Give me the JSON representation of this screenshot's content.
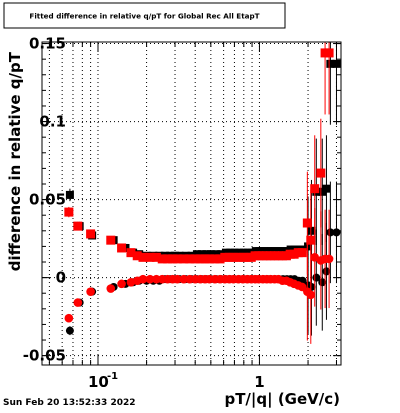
{
  "title": "Fitted difference in relative q/pT for Global Rec All EtapT",
  "date_stamp": "Sun Feb 20 13:52:33 2022",
  "chart_data": {
    "type": "scatter",
    "title": "Fitted difference in relative q/pT for Global Rec All EtapT",
    "xlabel": "pT/|q| (GeV/c)",
    "ylabel": "difference in relative q/pT",
    "xscale": "log",
    "xlim": [
      0.045,
      3.2
    ],
    "ylim": [
      -0.056,
      0.151
    ],
    "grid": true,
    "yticks": [
      {
        "label": "-0.05",
        "value": -0.05
      },
      {
        "label": "0",
        "value": 0
      },
      {
        "label": "0.05",
        "value": 0.05
      },
      {
        "label": "0.1",
        "value": 0.1
      },
      {
        "label": "0.15",
        "value": 0.15
      }
    ],
    "xticks": [
      {
        "base": "10",
        "exp": "-1",
        "value": 0.1
      },
      {
        "base": "1",
        "exp": "",
        "value": 1
      }
    ],
    "series": [
      {
        "color": "#000000",
        "x": [
          0.067,
          0.077,
          0.092,
          0.125,
          0.148,
          0.165,
          0.18,
          0.2,
          0.22,
          0.24,
          0.26,
          0.28,
          0.3,
          0.32,
          0.35,
          0.38,
          0.41,
          0.44,
          0.47,
          0.5,
          0.54,
          0.58,
          0.62,
          0.66,
          0.7,
          0.75,
          0.8,
          0.85,
          0.9,
          0.95,
          1.0,
          1.06,
          1.12,
          1.18,
          1.25,
          1.32,
          1.4,
          1.48,
          1.56,
          1.65,
          1.75,
          1.85,
          2.0,
          2.1,
          2.25,
          2.45,
          2.6,
          2.75,
          3.0
        ],
        "y_upper": [
          0.053,
          0.033,
          0.027,
          0.024,
          0.019,
          0.016,
          0.015,
          0.014,
          0.014,
          0.014,
          0.014,
          0.014,
          0.014,
          0.014,
          0.014,
          0.014,
          0.015,
          0.015,
          0.015,
          0.015,
          0.015,
          0.015,
          0.016,
          0.016,
          0.016,
          0.016,
          0.016,
          0.016,
          0.016,
          0.017,
          0.017,
          0.017,
          0.017,
          0.017,
          0.017,
          0.017,
          0.017,
          0.017,
          0.018,
          0.018,
          0.018,
          0.018,
          0.02,
          0.03,
          0.055,
          0.055,
          0.057,
          0.137,
          0.137
        ],
        "y_lower": [
          -0.034,
          -0.016,
          -0.009,
          -0.006,
          -0.004,
          -0.003,
          -0.002,
          -0.002,
          -0.002,
          -0.002,
          -0.001,
          -0.001,
          -0.001,
          -0.001,
          -0.001,
          -0.001,
          -0.001,
          -0.001,
          -0.001,
          -0.001,
          -0.001,
          -0.001,
          -0.001,
          -0.001,
          -0.001,
          -0.001,
          -0.001,
          -0.001,
          -0.001,
          -0.001,
          -0.001,
          -0.001,
          -0.001,
          -0.001,
          -0.001,
          -0.001,
          -0.001,
          -0.001,
          -0.001,
          -0.001,
          -0.002,
          -0.002,
          -0.005,
          -0.006,
          0.0,
          -0.003,
          0.004,
          0.029,
          0.029
        ]
      },
      {
        "color": "#ff0000",
        "x": [
          0.066,
          0.075,
          0.09,
          0.12,
          0.14,
          0.16,
          0.175,
          0.19,
          0.21,
          0.23,
          0.25,
          0.27,
          0.29,
          0.31,
          0.34,
          0.37,
          0.4,
          0.43,
          0.46,
          0.49,
          0.53,
          0.57,
          0.61,
          0.65,
          0.69,
          0.74,
          0.79,
          0.84,
          0.89,
          0.94,
          0.99,
          1.05,
          1.11,
          1.17,
          1.24,
          1.31,
          1.39,
          1.47,
          1.55,
          1.64,
          1.74,
          1.84,
          1.98,
          2.08,
          2.2,
          2.4,
          2.55,
          2.7
        ],
        "y_upper": [
          0.042,
          0.033,
          0.028,
          0.024,
          0.019,
          0.016,
          0.014,
          0.013,
          0.013,
          0.013,
          0.012,
          0.012,
          0.012,
          0.012,
          0.012,
          0.012,
          0.012,
          0.012,
          0.012,
          0.012,
          0.012,
          0.012,
          0.013,
          0.013,
          0.013,
          0.013,
          0.013,
          0.013,
          0.013,
          0.014,
          0.014,
          0.014,
          0.014,
          0.014,
          0.014,
          0.014,
          0.014,
          0.014,
          0.015,
          0.015,
          0.016,
          0.016,
          0.035,
          0.024,
          0.057,
          0.067,
          0.144,
          0.144
        ],
        "y_lower": [
          -0.026,
          -0.016,
          -0.009,
          -0.007,
          -0.004,
          -0.003,
          -0.002,
          -0.001,
          -0.001,
          -0.001,
          -0.001,
          -0.001,
          -0.001,
          -0.001,
          -0.001,
          -0.001,
          -0.001,
          -0.001,
          -0.001,
          -0.001,
          -0.001,
          -0.001,
          -0.001,
          -0.001,
          -0.001,
          -0.001,
          -0.001,
          -0.001,
          -0.001,
          -0.001,
          -0.001,
          -0.001,
          -0.001,
          -0.001,
          -0.001,
          -0.001,
          -0.002,
          -0.002,
          -0.003,
          -0.004,
          -0.005,
          -0.006,
          -0.009,
          -0.011,
          0.013,
          0.011,
          0.012,
          0.012
        ]
      }
    ]
  }
}
